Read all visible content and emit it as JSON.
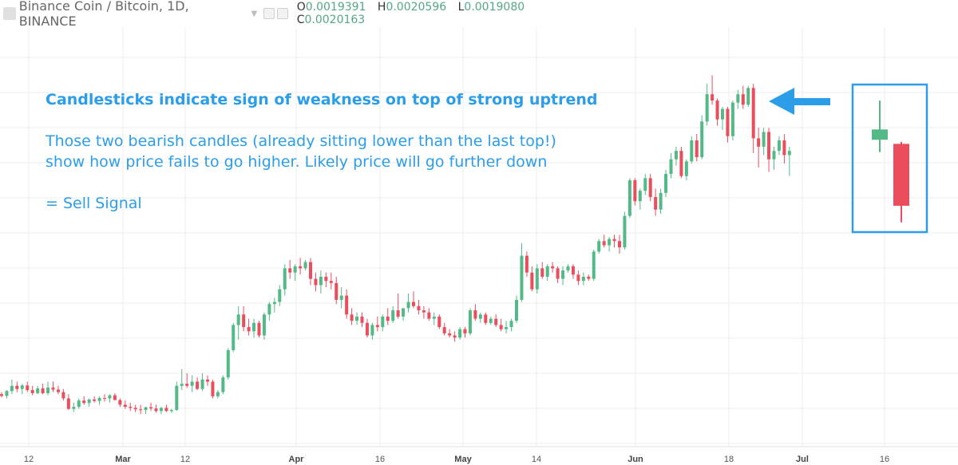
{
  "header": {
    "symbol_title": "Binance Coin / Bitcoin, 1D, BINANCE",
    "ohlc": {
      "o_label": "O",
      "o_value": "0.0019391",
      "h_label": "H",
      "h_value": "0.0020596",
      "l_label": "L",
      "l_value": "0.0019080",
      "c_label": "C",
      "c_value": "0.0020163"
    }
  },
  "annotations": {
    "headline": "Candlesticks indicate sign of weakness on top of strong uptrend",
    "line1": "Those two bearish candles (already sitting lower than the last top!)",
    "line2": "show how price fails to go higher. Likely price will go further down",
    "signal": "= Sell Signal"
  },
  "colors": {
    "up": "#53b987",
    "down": "#eb4d5c",
    "accent": "#2b9de9",
    "grid": "#eeeeee"
  },
  "chart_data": {
    "type": "candlestick",
    "x_ticks": [
      {
        "label": "12",
        "bold": false
      },
      {
        "label": "Mar",
        "bold": true
      },
      {
        "label": "12",
        "bold": false
      },
      {
        "label": "Apr",
        "bold": true
      },
      {
        "label": "16",
        "bold": false
      },
      {
        "label": "May",
        "bold": true
      },
      {
        "label": "14",
        "bold": false
      },
      {
        "label": "Jun",
        "bold": true
      },
      {
        "label": "18",
        "bold": false
      },
      {
        "label": "Jul",
        "bold": true
      },
      {
        "label": "16",
        "bold": false
      }
    ],
    "candles": [
      [
        0.0006,
        0.00061,
        0.000585,
        0.000592
      ],
      [
        0.000592,
        0.00062,
        0.00058,
        0.000615
      ],
      [
        0.000615,
        0.00067,
        0.0006,
        0.00064
      ],
      [
        0.00064,
        0.00066,
        0.00061,
        0.000625
      ],
      [
        0.000625,
        0.00065,
        0.0006,
        0.000642
      ],
      [
        0.000642,
        0.00066,
        0.00061,
        0.00062
      ],
      [
        0.00062,
        0.00064,
        0.000595,
        0.000605
      ],
      [
        0.000605,
        0.00064,
        0.0006,
        0.000628
      ],
      [
        0.000628,
        0.00065,
        0.0006,
        0.000605
      ],
      [
        0.000605,
        0.00066,
        0.000595,
        0.000632
      ],
      [
        0.000632,
        0.00066,
        0.00061,
        0.000622
      ],
      [
        0.000622,
        0.00064,
        0.0006,
        0.00061
      ],
      [
        0.00061,
        0.000625,
        0.00057,
        0.00058
      ],
      [
        0.00058,
        0.0006,
        0.000525,
        0.00053
      ],
      [
        0.00053,
        0.00056,
        0.000515,
        0.00054
      ],
      [
        0.00054,
        0.00058,
        0.00053,
        0.00057
      ],
      [
        0.00057,
        0.00059,
        0.00055,
        0.000558
      ],
      [
        0.000558,
        0.00058,
        0.00054,
        0.000575
      ],
      [
        0.000575,
        0.00059,
        0.00056,
        0.000568
      ],
      [
        0.000568,
        0.00059,
        0.00055,
        0.000582
      ],
      [
        0.000582,
        0.0006,
        0.000565,
        0.00058
      ],
      [
        0.00058,
        0.0006,
        0.00056,
        0.000595
      ],
      [
        0.000595,
        0.000605,
        0.000575,
        0.000572
      ],
      [
        0.000572,
        0.00058,
        0.00054,
        0.00055
      ],
      [
        0.00055,
        0.00057,
        0.00053,
        0.00054
      ],
      [
        0.00054,
        0.00056,
        0.00052,
        0.000535
      ],
      [
        0.000535,
        0.00055,
        0.000515,
        0.000528
      ],
      [
        0.000528,
        0.00055,
        0.000505,
        0.000525
      ],
      [
        0.000525,
        0.00054,
        0.000505,
        0.000538
      ],
      [
        0.000538,
        0.00056,
        0.00052,
        0.000532
      ],
      [
        0.000532,
        0.00055,
        0.000512,
        0.00052
      ],
      [
        0.00052,
        0.00054,
        0.000505,
        0.000535
      ],
      [
        0.000535,
        0.00055,
        0.000515,
        0.00052
      ],
      [
        0.00052,
        0.00053,
        0.00051,
        0.000525
      ],
      [
        0.000525,
        0.00066,
        0.00052,
        0.00064
      ],
      [
        0.00064,
        0.00072,
        0.00062,
        0.00065
      ],
      [
        0.00065,
        0.0007,
        0.00063,
        0.00064
      ],
      [
        0.00064,
        0.00069,
        0.00061,
        0.00066
      ],
      [
        0.00066,
        0.00068,
        0.00062,
        0.000625
      ],
      [
        0.000625,
        0.0007,
        0.000615,
        0.00067
      ],
      [
        0.00067,
        0.00069,
        0.00064,
        0.00066
      ],
      [
        0.00066,
        0.00067,
        0.00058,
        0.00059
      ],
      [
        0.00059,
        0.00062,
        0.00058,
        0.00061
      ],
      [
        0.00061,
        0.00069,
        0.0006,
        0.00068
      ],
      [
        0.00068,
        0.00082,
        0.00067,
        0.00081
      ],
      [
        0.00081,
        0.00094,
        0.0008,
        0.00093
      ],
      [
        0.00093,
        0.00102,
        0.00086,
        0.00098
      ],
      [
        0.00098,
        0.00102,
        0.0009,
        0.00092
      ],
      [
        0.00092,
        0.00096,
        0.00088,
        0.0009
      ],
      [
        0.0009,
        0.00096,
        0.00087,
        0.00094
      ],
      [
        0.00094,
        0.00095,
        0.00087,
        0.00088
      ],
      [
        0.00088,
        0.00099,
        0.00086,
        0.00098
      ],
      [
        0.00098,
        0.00104,
        0.00095,
        0.00103
      ],
      [
        0.00103,
        0.00106,
        0.00099,
        0.00104
      ],
      [
        0.00104,
        0.00112,
        0.00102,
        0.0011
      ],
      [
        0.0011,
        0.00122,
        0.00107,
        0.0012
      ],
      [
        0.0012,
        0.00124,
        0.00115,
        0.00118
      ],
      [
        0.00118,
        0.00122,
        0.00114,
        0.00121
      ],
      [
        0.00121,
        0.00125,
        0.00117,
        0.0012
      ],
      [
        0.0012,
        0.00124,
        0.00119,
        0.00123
      ],
      [
        0.00123,
        0.00125,
        0.00112,
        0.00115
      ],
      [
        0.00115,
        0.00118,
        0.00109,
        0.00112
      ],
      [
        0.00112,
        0.00119,
        0.00108,
        0.00116
      ],
      [
        0.00116,
        0.00118,
        0.00111,
        0.00114
      ],
      [
        0.00114,
        0.00118,
        0.0011,
        0.00113
      ],
      [
        0.00113,
        0.00116,
        0.00103,
        0.00105
      ],
      [
        0.00105,
        0.00111,
        0.00101,
        0.00107
      ],
      [
        0.00107,
        0.0011,
        0.00096,
        0.00098
      ],
      [
        0.00098,
        0.00101,
        0.00093,
        0.00095
      ],
      [
        0.00095,
        0.00099,
        0.00093,
        0.00097
      ],
      [
        0.00097,
        0.00099,
        0.00092,
        0.00094
      ],
      [
        0.00094,
        0.00096,
        0.00087,
        0.00088
      ],
      [
        0.00088,
        0.00094,
        0.00086,
        0.00093
      ],
      [
        0.00093,
        0.00097,
        0.0009,
        0.00092
      ],
      [
        0.00092,
        0.00098,
        0.0009,
        0.00097
      ],
      [
        0.00097,
        0.00101,
        0.00093,
        0.00095
      ],
      [
        0.00095,
        0.00102,
        0.00094,
        0.001
      ],
      [
        0.001,
        0.00108,
        0.00096,
        0.00097
      ],
      [
        0.00097,
        0.00101,
        0.00095,
        0.00101
      ],
      [
        0.00101,
        0.00108,
        0.00099,
        0.00104
      ],
      [
        0.00104,
        0.00109,
        0.00101,
        0.00102
      ],
      [
        0.00102,
        0.00105,
        0.00098,
        0.001
      ],
      [
        0.001,
        0.00102,
        0.00096,
        0.00099
      ],
      [
        0.00099,
        0.00101,
        0.00095,
        0.00096
      ],
      [
        0.00096,
        0.00099,
        0.00093,
        0.00097
      ],
      [
        0.00097,
        0.00098,
        0.00091,
        0.00092
      ],
      [
        0.00092,
        0.00094,
        0.00088,
        0.00089
      ],
      [
        0.00089,
        0.00091,
        0.00087,
        0.00088
      ],
      [
        0.00088,
        0.0009,
        0.00085,
        0.00087
      ],
      [
        0.00087,
        0.00092,
        0.00086,
        0.00091
      ],
      [
        0.00091,
        0.00092,
        0.00087,
        0.00089
      ],
      [
        0.00089,
        0.00101,
        0.00088,
        0.001
      ],
      [
        0.001,
        0.00103,
        0.00095,
        0.00096
      ],
      [
        0.00096,
        0.00099,
        0.00094,
        0.00098
      ],
      [
        0.00098,
        0.00099,
        0.00093,
        0.00094
      ],
      [
        0.00094,
        0.00097,
        0.00093,
        0.00096
      ],
      [
        0.00096,
        0.00098,
        0.00092,
        0.00093
      ],
      [
        0.00093,
        0.00096,
        0.0009,
        0.00091
      ],
      [
        0.00091,
        0.00095,
        0.00089,
        0.00092
      ],
      [
        0.00092,
        0.00096,
        0.0009,
        0.00095
      ],
      [
        0.00095,
        0.00107,
        0.00094,
        0.00105
      ],
      [
        0.00105,
        0.00132,
        0.00104,
        0.00126
      ],
      [
        0.00126,
        0.00128,
        0.00116,
        0.00118
      ],
      [
        0.00118,
        0.00121,
        0.00109,
        0.0011
      ],
      [
        0.0011,
        0.00122,
        0.00108,
        0.0012
      ],
      [
        0.0012,
        0.00123,
        0.00115,
        0.00116
      ],
      [
        0.00116,
        0.00122,
        0.00114,
        0.00121
      ],
      [
        0.00121,
        0.00123,
        0.00118,
        0.0012
      ],
      [
        0.0012,
        0.00121,
        0.00113,
        0.00115
      ],
      [
        0.00115,
        0.00121,
        0.00112,
        0.00119
      ],
      [
        0.00119,
        0.00122,
        0.00118,
        0.00121
      ],
      [
        0.00121,
        0.00122,
        0.00115,
        0.00117
      ],
      [
        0.00117,
        0.00119,
        0.00112,
        0.00114
      ],
      [
        0.00114,
        0.00118,
        0.00112,
        0.00116
      ],
      [
        0.00116,
        0.00117,
        0.00114,
        0.00115
      ],
      [
        0.00115,
        0.00129,
        0.00114,
        0.00128
      ],
      [
        0.00128,
        0.00134,
        0.00127,
        0.00133
      ],
      [
        0.00133,
        0.00136,
        0.0013,
        0.00131
      ],
      [
        0.00131,
        0.00135,
        0.00128,
        0.00134
      ],
      [
        0.00134,
        0.00136,
        0.0013,
        0.00133
      ],
      [
        0.00133,
        0.00136,
        0.00127,
        0.0013
      ],
      [
        0.0013,
        0.00147,
        0.00129,
        0.00145
      ],
      [
        0.00145,
        0.00163,
        0.00144,
        0.00162
      ],
      [
        0.00162,
        0.00163,
        0.0015,
        0.00152
      ],
      [
        0.00152,
        0.00158,
        0.00148,
        0.00157
      ],
      [
        0.00157,
        0.00165,
        0.00155,
        0.00163
      ],
      [
        0.00163,
        0.00165,
        0.00152,
        0.00154
      ],
      [
        0.00154,
        0.00158,
        0.00145,
        0.00148
      ],
      [
        0.00148,
        0.00158,
        0.00146,
        0.00156
      ],
      [
        0.00156,
        0.00167,
        0.00154,
        0.00165
      ],
      [
        0.00165,
        0.00175,
        0.00163,
        0.00172
      ],
      [
        0.00172,
        0.00178,
        0.00169,
        0.00176
      ],
      [
        0.00176,
        0.00178,
        0.00163,
        0.00164
      ],
      [
        0.00164,
        0.00172,
        0.00162,
        0.00171
      ],
      [
        0.00171,
        0.00183,
        0.0017,
        0.00181
      ],
      [
        0.00181,
        0.00184,
        0.00171,
        0.00173
      ],
      [
        0.00173,
        0.00193,
        0.00172,
        0.0019
      ],
      [
        0.0019,
        0.00208,
        0.00188,
        0.00203
      ],
      [
        0.00203,
        0.00212,
        0.00198,
        0.002
      ],
      [
        0.002,
        0.00201,
        0.00188,
        0.00191
      ],
      [
        0.00191,
        0.00197,
        0.00186,
        0.00196
      ],
      [
        0.00196,
        0.00197,
        0.0018,
        0.00183
      ],
      [
        0.00183,
        0.002,
        0.00181,
        0.00199
      ],
      [
        0.00199,
        0.00205,
        0.00196,
        0.00203
      ],
      [
        0.00203,
        0.00207,
        0.00196,
        0.00198
      ],
      [
        0.00198,
        0.00207,
        0.00197,
        0.00206
      ],
      [
        0.00206,
        0.00208,
        0.00175,
        0.00182
      ],
      [
        0.00182,
        0.00187,
        0.00168,
        0.00178
      ],
      [
        0.00178,
        0.00187,
        0.00174,
        0.00185
      ],
      [
        0.00185,
        0.00187,
        0.00166,
        0.00172
      ],
      [
        0.00172,
        0.00178,
        0.00167,
        0.00176
      ],
      [
        0.00176,
        0.00183,
        0.00174,
        0.00181
      ],
      [
        0.00181,
        0.00184,
        0.0017,
        0.00174
      ],
      [
        0.00174,
        0.00178,
        0.00164,
        0.00176
      ]
    ],
    "zoom_candles": [
      [
        0.00184,
        0.00203,
        0.00178,
        0.00189
      ],
      [
        0.00182,
        0.00183,
        0.00144,
        0.00152
      ]
    ]
  }
}
